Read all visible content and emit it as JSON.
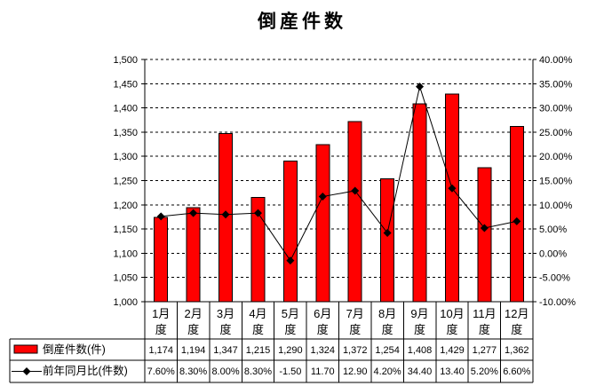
{
  "title": "倒産件数",
  "chart_data": {
    "type": "bar",
    "title": "倒産件数",
    "categories": [
      "1月度",
      "2月度",
      "3月度",
      "4月度",
      "5月度",
      "6月度",
      "7月度",
      "8月度",
      "9月度",
      "10月度",
      "11月度",
      "12月度"
    ],
    "series": [
      {
        "name": "倒産件数(件)",
        "type": "bar",
        "axis": "left",
        "color": "#ff0000",
        "values": [
          1174,
          1194,
          1347,
          1215,
          1290,
          1324,
          1372,
          1254,
          1408,
          1429,
          1277,
          1362
        ]
      },
      {
        "name": "前年同月比(件数)",
        "type": "line",
        "axis": "right",
        "color": "#000000",
        "marker": "diamond",
        "values": [
          7.6,
          8.3,
          8.0,
          8.3,
          -1.5,
          11.7,
          12.9,
          4.2,
          34.4,
          13.4,
          5.2,
          6.6
        ]
      }
    ],
    "left_axis": {
      "min": 1000,
      "max": 1500,
      "step": 50,
      "tick_labels": [
        "1,000",
        "1,050",
        "1,100",
        "1,150",
        "1,200",
        "1,250",
        "1,300",
        "1,350",
        "1,400",
        "1,450",
        "1,500"
      ]
    },
    "right_axis": {
      "min": -10,
      "max": 40,
      "step": 5,
      "tick_labels": [
        "-10.00%",
        "-5.00%",
        "0.00%",
        "5.00%",
        "10.00%",
        "15.00%",
        "20.00%",
        "25.00%",
        "30.00%",
        "35.00%",
        "40.00%"
      ]
    },
    "grid": true,
    "legend_position": "data-table-left",
    "data_table": {
      "rows": [
        {
          "label": "倒産件数(件)",
          "marker": "red-bar-swatch-icon",
          "cells": [
            "1,174",
            "1,194",
            "1,347",
            "1,215",
            "1,290",
            "1,324",
            "1,372",
            "1,254",
            "1,408",
            "1,429",
            "1,277",
            "1,362"
          ]
        },
        {
          "label": "前年同月比(件数)",
          "marker": "diamond-line-icon",
          "cells": [
            "7.60%",
            "8.30%",
            "8.00%",
            "8.30%",
            "-1.50",
            "11.70",
            "12.90",
            "4.20%",
            "34.40",
            "13.40",
            "5.20%",
            "6.60%"
          ]
        }
      ]
    },
    "colors": {
      "bar": "#ff0000",
      "line": "#000000",
      "grid": "#000000",
      "background": "#ffffff"
    }
  }
}
